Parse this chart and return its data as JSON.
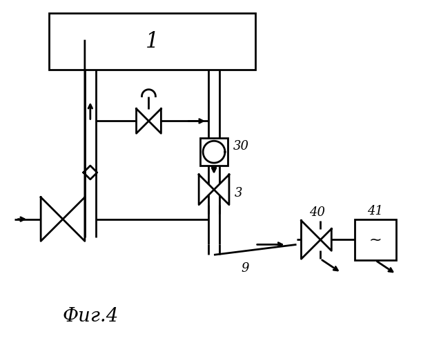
{
  "bg_color": "#ffffff",
  "line_color": "#000000",
  "fig_label": "Фиг.4"
}
